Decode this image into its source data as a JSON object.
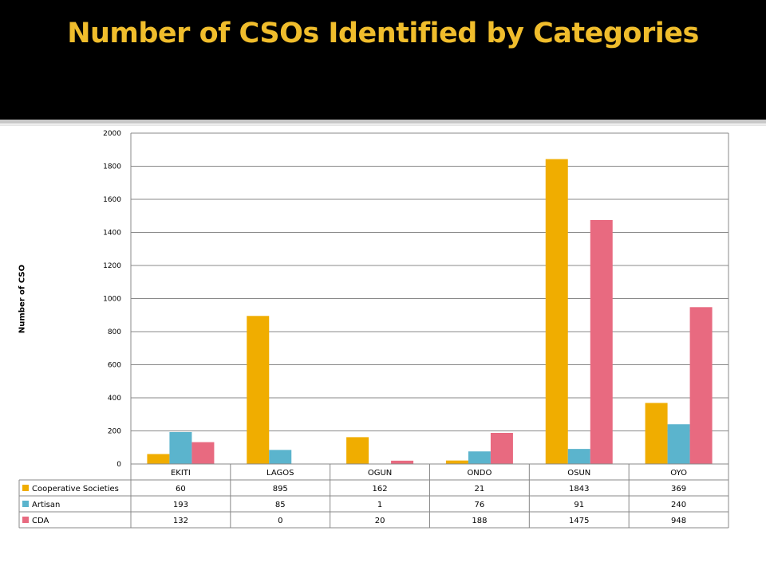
{
  "slide": {
    "title": "Number of CSOs Identified by Categories"
  },
  "chart_data": {
    "type": "bar",
    "title": "",
    "xlabel": "",
    "ylabel": "Number of CSO",
    "ylim": [
      0,
      2000
    ],
    "yticks": [
      0,
      200,
      400,
      600,
      800,
      1000,
      1200,
      1400,
      1600,
      1800,
      2000
    ],
    "grid": true,
    "legend": "data-table",
    "categories": [
      "EKITI",
      "LAGOS",
      "OGUN",
      "ONDO",
      "OSUN",
      "OYO"
    ],
    "series": [
      {
        "name": "Cooperative Societies",
        "color": "#f0ad00",
        "values": [
          60,
          895,
          162,
          21,
          1843,
          369
        ]
      },
      {
        "name": "Artisan",
        "color": "#5bb4cd",
        "values": [
          193,
          85,
          1,
          76,
          91,
          240
        ]
      },
      {
        "name": "CDA",
        "color": "#e86a80",
        "values": [
          132,
          0,
          20,
          188,
          1475,
          948
        ]
      }
    ]
  }
}
